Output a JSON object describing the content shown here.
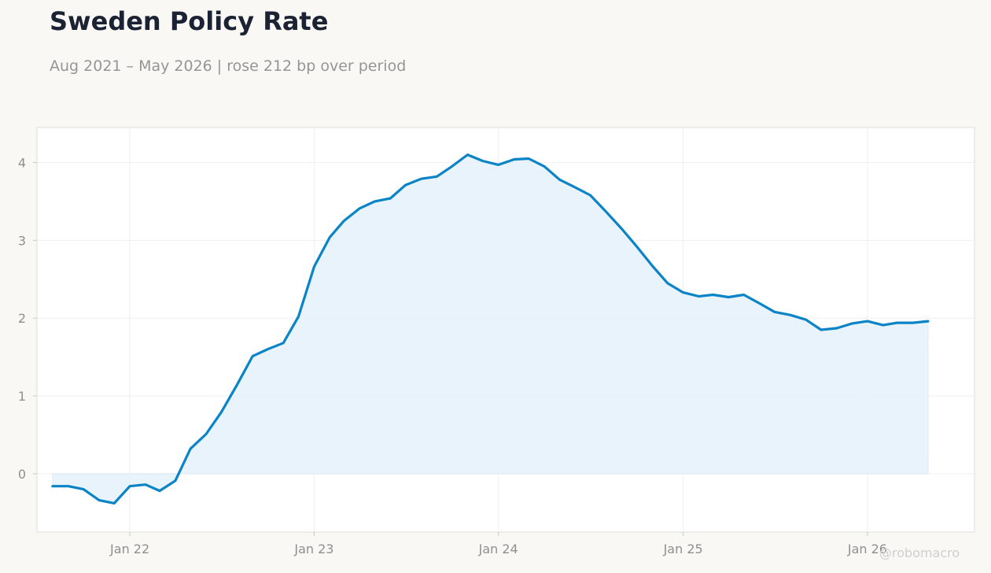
{
  "title": "Sweden Policy Rate",
  "subtitle": "Aug 2021 – May 2026 | rose 212 bp over period",
  "watermark": "@robomacro",
  "colors": {
    "line": "#0a84c6",
    "fill": "#e6f2fb",
    "background": "#f9f8f5",
    "plot_background": "#ffffff",
    "grid": "#efefef",
    "title": "#1b2233",
    "subtitle": "#959595"
  },
  "chart_data": {
    "type": "area",
    "title": "Sweden Policy Rate",
    "subtitle": "Aug 2021 – May 2026 | rose 212 bp over period",
    "xlabel": "",
    "ylabel": "",
    "ylim": [
      -0.75,
      4.45
    ],
    "yticks": [
      0,
      1,
      2,
      3,
      4
    ],
    "xticks": [
      {
        "label": "Jan 22",
        "date": "2022-01-01"
      },
      {
        "label": "Jan 23",
        "date": "2023-01-01"
      },
      {
        "label": "Jan 24",
        "date": "2024-01-01"
      },
      {
        "label": "Jan 25",
        "date": "2025-01-01"
      },
      {
        "label": "Jan 26",
        "date": "2026-01-01"
      }
    ],
    "xlim": [
      "2021-07-01",
      "2026-08-01"
    ],
    "grid": true,
    "series": [
      {
        "x": [
          "2021-08-01",
          "2021-09-01",
          "2021-10-01",
          "2021-11-01",
          "2021-12-01",
          "2022-01-01",
          "2022-02-01",
          "2022-03-01",
          "2022-04-01",
          "2022-05-01",
          "2022-06-01",
          "2022-07-01",
          "2022-08-01",
          "2022-09-01",
          "2022-10-01",
          "2022-11-01",
          "2022-12-01",
          "2023-01-01",
          "2023-02-01",
          "2023-03-01",
          "2023-04-01",
          "2023-05-01",
          "2023-06-01",
          "2023-07-01",
          "2023-08-01",
          "2023-09-01",
          "2023-10-01",
          "2023-11-01",
          "2023-12-01",
          "2024-01-01",
          "2024-02-01",
          "2024-03-01",
          "2024-04-01",
          "2024-05-01",
          "2024-06-01",
          "2024-07-01",
          "2024-08-01",
          "2024-09-01",
          "2024-10-01",
          "2024-11-01",
          "2024-12-01",
          "2025-01-01",
          "2025-02-01",
          "2025-03-01",
          "2025-04-01",
          "2025-05-01",
          "2025-06-01",
          "2025-07-01",
          "2025-08-01",
          "2025-09-01",
          "2025-10-01",
          "2025-11-01",
          "2025-12-01",
          "2026-01-01",
          "2026-02-01",
          "2026-03-01",
          "2026-04-01",
          "2026-05-01"
        ],
        "values": [
          -0.16,
          -0.16,
          -0.2,
          -0.34,
          -0.38,
          -0.16,
          -0.14,
          -0.22,
          -0.09,
          0.32,
          0.51,
          0.79,
          1.14,
          1.51,
          1.6,
          1.68,
          2.02,
          2.66,
          3.04,
          3.25,
          3.41,
          3.5,
          3.54,
          3.71,
          3.79,
          3.82,
          3.95,
          4.1,
          4.02,
          3.97,
          4.04,
          4.05,
          3.95,
          3.78,
          3.68,
          3.58,
          3.37,
          3.15,
          2.92,
          2.67,
          2.45,
          2.33,
          2.28,
          2.3,
          2.27,
          2.3,
          2.19,
          2.08,
          2.04,
          1.98,
          1.85,
          1.87,
          1.93,
          1.96,
          1.91,
          1.94,
          1.94,
          1.96
        ]
      }
    ]
  }
}
